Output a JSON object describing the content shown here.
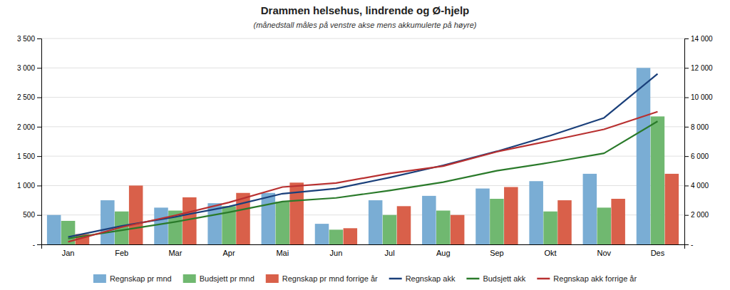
{
  "chart_data": {
    "type": "bar",
    "title": "Drammen helsehus, lindrende og Ø-hjelp",
    "subtitle": "(månedstall måles på venstre akse mens akkumulerte på høyre)",
    "categories": [
      "Jan",
      "Feb",
      "Mar",
      "Apr",
      "Mai",
      "Jun",
      "Jul",
      "Aug",
      "Sep",
      "Okt",
      "Nov",
      "Des"
    ],
    "series": [
      {
        "name": "Regnskap pr mnd",
        "color": "#7aadd4",
        "values": [
          500,
          750,
          625,
          700,
          875,
          350,
          750,
          825,
          950,
          1075,
          1200,
          3000
        ]
      },
      {
        "name": "Budsjett pr mnd",
        "color": "#70b870",
        "values": [
          400,
          560,
          575,
          650,
          725,
          250,
          500,
          575,
          775,
          560,
          625,
          2175
        ]
      },
      {
        "name": "Regnskap pr mnd forrige år",
        "color": "#d9604a",
        "values": [
          175,
          1000,
          800,
          875,
          1050,
          275,
          650,
          500,
          975,
          750,
          775,
          1200
        ]
      },
      {
        "name": "Regnskap akk",
        "type": "line",
        "axis": "y2",
        "color": "#1a3f7a",
        "values": [
          500,
          1250,
          1875,
          2575,
          3450,
          3800,
          4550,
          5375,
          6325,
          7400,
          8600,
          11600
        ]
      },
      {
        "name": "Budsjett akk",
        "type": "line",
        "axis": "y2",
        "color": "#2a7a2a",
        "values": [
          400,
          960,
          1535,
          2185,
          2910,
          3160,
          3660,
          4235,
          5010,
          5570,
          6195,
          8370
        ]
      },
      {
        "name": "Regnskap akk forrige år",
        "type": "line",
        "axis": "y2",
        "color": "#b83030",
        "values": [
          175,
          1175,
          1975,
          2850,
          3900,
          4175,
          4825,
          5325,
          6300,
          7050,
          7825,
          9025
        ]
      }
    ],
    "ylim": [
      0,
      3500
    ],
    "yticks": [
      {
        "value": 0,
        "label": "-"
      },
      500,
      {
        "value": 1000,
        "label": "1 000"
      },
      {
        "value": 1500,
        "label": "1 500"
      },
      {
        "value": 2000,
        "label": "2 000"
      },
      {
        "value": 2500,
        "label": "2 500"
      },
      {
        "value": 3000,
        "label": "3 000"
      },
      {
        "value": 3500,
        "label": "3 500"
      }
    ],
    "y2lim": [
      0,
      14000
    ],
    "y2ticks": [
      {
        "value": 0,
        "label": "-"
      },
      {
        "value": 2000,
        "label": "2 000"
      },
      {
        "value": 4000,
        "label": "4 000"
      },
      {
        "value": 6000,
        "label": "6 000"
      },
      {
        "value": 8000,
        "label": "8 000"
      },
      {
        "value": 10000,
        "label": "10 000"
      },
      {
        "value": 12000,
        "label": "12 000"
      },
      {
        "value": 14000,
        "label": "14 000"
      }
    ],
    "grid": true,
    "legend": "bottom"
  }
}
